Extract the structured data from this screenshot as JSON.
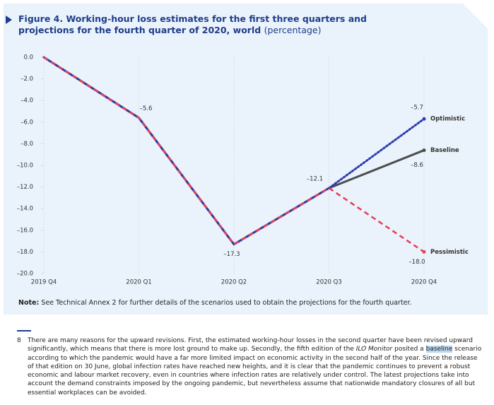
{
  "chart_data": {
    "type": "line",
    "title": "Figure 4.  Working-hour loss estimates for the first three quarters and projections for the fourth quarter of 2020, world",
    "subtitle": "(percentage)",
    "categories": [
      "2019 Q4",
      "2020 Q1",
      "2020 Q2",
      "2020 Q3",
      "2020 Q4"
    ],
    "ylim": [
      -20,
      0
    ],
    "yticks": [
      {
        "value": 0,
        "label": "0.0"
      },
      {
        "value": -2,
        "label": "–2.0"
      },
      {
        "value": -4,
        "label": "–4.0"
      },
      {
        "value": -6,
        "label": "–6.0"
      },
      {
        "value": -8,
        "label": "–8.0"
      },
      {
        "value": -10,
        "label": "–10.0"
      },
      {
        "value": -12,
        "label": "–12.0"
      },
      {
        "value": -14,
        "label": "–14.0"
      },
      {
        "value": -16,
        "label": "–16.0"
      },
      {
        "value": -18,
        "label": "–18.0"
      },
      {
        "value": -20,
        "label": "–20.0"
      }
    ],
    "series": [
      {
        "name": "Baseline",
        "color": "#4d4d4f",
        "style": "solid",
        "values": [
          0,
          -5.6,
          -17.3,
          -12.1,
          -8.6
        ],
        "value_labels": [
          null,
          "–5.6",
          "–17.3",
          "–12.1",
          "–8.6"
        ]
      },
      {
        "name": "Optimistic",
        "color": "#2e3cb0",
        "style": "dotted",
        "values": [
          0,
          -5.6,
          -17.3,
          -12.1,
          -5.7
        ],
        "value_labels": [
          null,
          null,
          null,
          null,
          "–5.7"
        ]
      },
      {
        "name": "Pessimistic",
        "color": "#e8405a",
        "style": "dashed",
        "values": [
          0,
          -5.6,
          -17.3,
          -12.1,
          -18.0
        ],
        "value_labels": [
          null,
          null,
          null,
          null,
          "–18.0"
        ]
      }
    ]
  },
  "note": {
    "label": "Note:",
    "text": "See Technical Annex 2 for further details of the scenarios used to obtain the projections for the fourth quarter."
  },
  "footnote": {
    "number": "8",
    "parts": [
      "There are many reasons for the upward revisions. First, the estimated working-hour losses in the second quarter have been revised upward significantly, which means that there is more lost ground to make up. Secondly, the fifth edition of the ",
      "ILO Monitor",
      " posited a ",
      "baseline",
      " scenario according to which the pandemic would have a far more limited impact on economic activity in the second half of the year. Since the release of that edition on 30 June, global infection rates have reached new heights, and it is clear that the pandemic continues to prevent a robust economic and labour market recovery, even in countries where infection rates are relatively under control. The latest projections take into account the demand constraints imposed by the ongoing pandemic, but nevertheless assume that nationwide mandatory closures of all but essential workplaces can be avoided."
    ]
  }
}
